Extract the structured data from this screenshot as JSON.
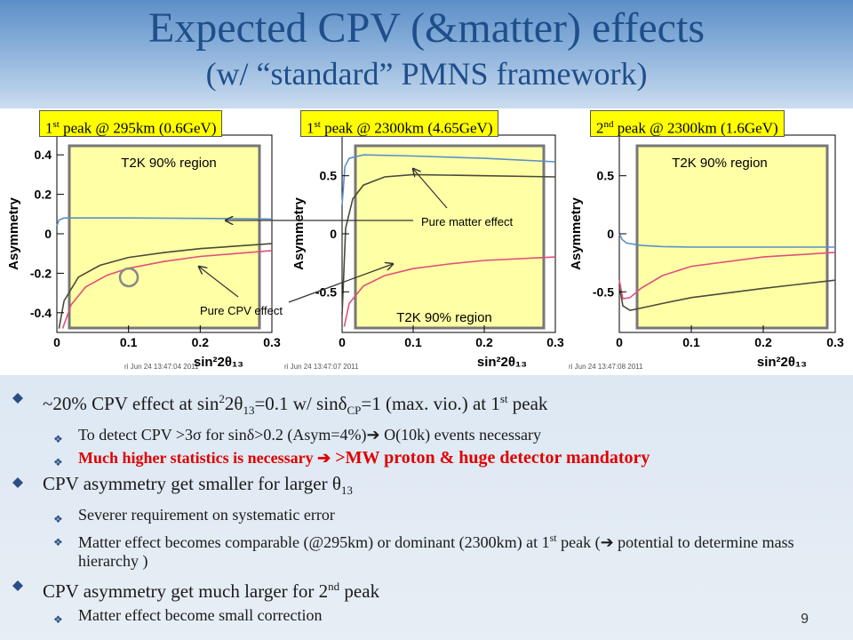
{
  "title": {
    "line1": "Expected CPV (&matter) effects",
    "line2": "(w/ “standard” PMNS framework)"
  },
  "tags": [
    {
      "pre": "1",
      "sup": "st",
      "post": " peak @ 295km (0.6GeV)"
    },
    {
      "pre": "1",
      "sup": "st",
      "post": " peak @ 2300km (4.65GeV)"
    },
    {
      "pre": "2",
      "sup": "nd",
      "post": " peak @ 2300km (1.6GeV)"
    }
  ],
  "annotations": {
    "t2k_region": "T2K 90% region",
    "pure_matter": "Pure matter effect",
    "pure_cpv": "Pure CPV effect"
  },
  "timestamps": [
    "ri Jun 24 13:47:04 2011",
    "ri Jun 24 13:47:07 2011",
    "ri Jun 24 13:47:08 2011"
  ],
  "chart_data": [
    {
      "type": "line",
      "ylabel": "Asymmetry",
      "xlabel": "sin²2θ₁₃",
      "xlim": [
        0,
        0.3
      ],
      "ylim": [
        -0.5,
        0.5
      ],
      "xticks": [
        "0",
        "0.1",
        "0.2",
        "0.3"
      ],
      "yticks": [
        "-0.4",
        "-0.2",
        "0",
        "0.2",
        "0.4"
      ],
      "ytick_values": [
        -0.4,
        -0.2,
        0,
        0.2,
        0.4
      ],
      "colors": {
        "blue": "#5b8fc8",
        "dark": "#4a4a3a",
        "pink": "#e0507a"
      },
      "series": [
        {
          "color": "blue",
          "x": [
            0.0,
            0.003,
            0.01,
            0.05,
            0.1,
            0.2,
            0.3
          ],
          "y": [
            0.04,
            0.07,
            0.08,
            0.08,
            0.08,
            0.078,
            0.075
          ]
        },
        {
          "color": "dark",
          "x": [
            0.003,
            0.01,
            0.03,
            0.06,
            0.1,
            0.15,
            0.2,
            0.3
          ],
          "y": [
            -0.48,
            -0.34,
            -0.22,
            -0.16,
            -0.12,
            -0.095,
            -0.075,
            -0.05
          ]
        },
        {
          "color": "pink",
          "x": [
            0.008,
            0.02,
            0.04,
            0.07,
            0.1,
            0.15,
            0.2,
            0.3
          ],
          "y": [
            -0.48,
            -0.36,
            -0.27,
            -0.21,
            -0.175,
            -0.14,
            -0.115,
            -0.085
          ]
        }
      ]
    },
    {
      "type": "line",
      "ylabel": "Asymmetry",
      "xlabel": "sin²2θ₁₃",
      "xlim": [
        0,
        0.3
      ],
      "ylim": [
        -0.85,
        0.85
      ],
      "xticks": [
        "0",
        "0.1",
        "0.2",
        "0.3"
      ],
      "yticks": [
        "-0.5",
        "0",
        "0.5"
      ],
      "ytick_values": [
        -0.5,
        0,
        0.5
      ],
      "colors": {
        "blue": "#5b8fc8",
        "dark": "#4a4a3a",
        "pink": "#e0507a"
      },
      "series": [
        {
          "color": "blue",
          "x": [
            0.0,
            0.004,
            0.01,
            0.03,
            0.1,
            0.2,
            0.3
          ],
          "y": [
            0.25,
            0.58,
            0.65,
            0.68,
            0.67,
            0.65,
            0.62
          ]
        },
        {
          "color": "dark",
          "x": [
            0.0,
            0.005,
            0.015,
            0.03,
            0.06,
            0.1,
            0.2,
            0.3
          ],
          "y": [
            -0.7,
            0.05,
            0.3,
            0.42,
            0.49,
            0.51,
            0.5,
            0.49
          ]
        },
        {
          "color": "pink",
          "x": [
            0.003,
            0.01,
            0.03,
            0.06,
            0.1,
            0.15,
            0.2,
            0.3
          ],
          "y": [
            -0.8,
            -0.6,
            -0.45,
            -0.36,
            -0.3,
            -0.26,
            -0.23,
            -0.2
          ]
        }
      ]
    },
    {
      "type": "line",
      "ylabel": "Asymmetry",
      "xlabel": "sin²2θ₁₃",
      "xlim": [
        0,
        0.3
      ],
      "ylim": [
        -0.85,
        0.85
      ],
      "xticks": [
        "0",
        "0.1",
        "0.2",
        "0.3"
      ],
      "yticks": [
        "-0.5",
        "0",
        "0.5"
      ],
      "ytick_values": [
        -0.5,
        0,
        0.5
      ],
      "colors": {
        "blue": "#5b8fc8",
        "dark": "#4a4a3a",
        "pink": "#e0507a"
      },
      "series": [
        {
          "color": "blue",
          "x": [
            0.0,
            0.004,
            0.01,
            0.03,
            0.06,
            0.1,
            0.2,
            0.3
          ],
          "y": [
            0.0,
            -0.05,
            -0.08,
            -0.1,
            -0.11,
            -0.115,
            -0.115,
            -0.115
          ]
        },
        {
          "color": "dark",
          "x": [
            0.0,
            0.005,
            0.015,
            0.03,
            0.06,
            0.1,
            0.2,
            0.3
          ],
          "y": [
            -0.45,
            -0.62,
            -0.66,
            -0.64,
            -0.6,
            -0.55,
            -0.47,
            -0.4
          ]
        },
        {
          "color": "pink",
          "x": [
            0.0,
            0.005,
            0.015,
            0.03,
            0.06,
            0.1,
            0.2,
            0.3
          ],
          "y": [
            -0.4,
            -0.56,
            -0.55,
            -0.47,
            -0.36,
            -0.28,
            -0.2,
            -0.16
          ]
        }
      ]
    }
  ],
  "bullets": {
    "b1": {
      "a": "~20% CPV effect at sin",
      "s1": "2",
      "b": "2θ",
      "s2": "13",
      "c": "=0.1 w/ sinδ",
      "s3": "CP",
      "d": "=1 (max. vio.) at 1",
      "s4": "st",
      "e": " peak"
    },
    "b1a": "To detect CPV >3σ for sinδ>0.2 (Asym=4%)➔ O(10k) events necessary",
    "b1b": {
      "a": "Much higher statistics  is necessary ",
      "arrow": "➔",
      "b": " >MW proton & huge detector mandatory"
    },
    "b2": {
      "a": "CPV asymmetry get smaller for larger θ",
      "s": "13"
    },
    "b2a": "Severer requirement on systematic error",
    "b2b": {
      "a": "Matter effect becomes comparable (@295km) or dominant (2300km) at 1",
      "s": "st",
      "b": " peak (➔ potential to determine mass hierarchy )"
    },
    "b3": {
      "a": "CPV asymmetry get much larger for 2",
      "s": "nd",
      "b": " peak"
    },
    "b3a": "Matter effect become small correction"
  },
  "page_number": "9"
}
